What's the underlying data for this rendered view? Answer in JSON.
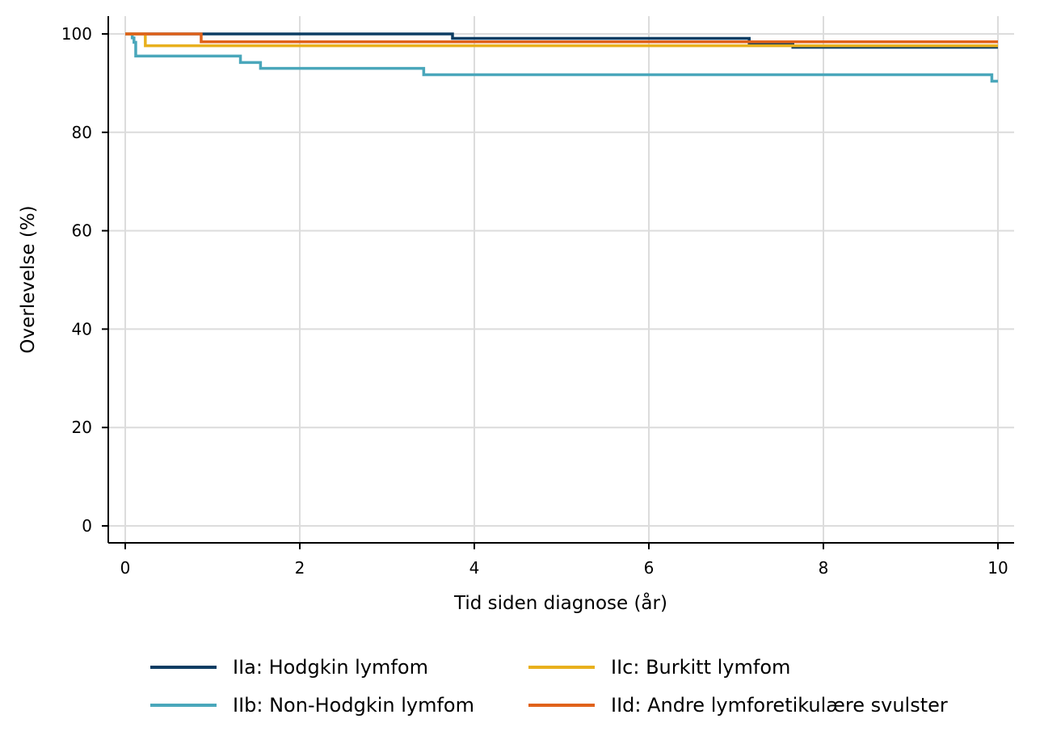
{
  "chart_data": {
    "type": "line",
    "title": "",
    "xlabel": "Tid siden diagnose (år)",
    "ylabel": "Overlevelse (%)",
    "xlim": [
      0,
      10
    ],
    "ylim": [
      0,
      100
    ],
    "x_ticks": [
      0,
      2,
      4,
      6,
      8,
      10
    ],
    "y_ticks": [
      0,
      20,
      40,
      60,
      80,
      100
    ],
    "grid": true,
    "legend_position": "bottom",
    "series": [
      {
        "name": "IIa: Hodgkin lymfom",
        "color": "#0d3d63",
        "steps": [
          [
            0,
            100
          ],
          [
            3.75,
            99.1
          ],
          [
            7.15,
            98.0
          ],
          [
            7.65,
            97.3
          ],
          [
            10,
            97.3
          ]
        ]
      },
      {
        "name": "IIb: Non-Hodgkin lymfom",
        "color": "#4aa7bb",
        "steps": [
          [
            0,
            100
          ],
          [
            0.08,
            99.2
          ],
          [
            0.1,
            98.3
          ],
          [
            0.12,
            95.5
          ],
          [
            1.32,
            94.2
          ],
          [
            1.55,
            93.0
          ],
          [
            3.42,
            91.7
          ],
          [
            9.93,
            90.4
          ],
          [
            10,
            90.4
          ]
        ]
      },
      {
        "name": "IIc: Burkitt lymfom",
        "color": "#e8b01d",
        "steps": [
          [
            0,
            100
          ],
          [
            0.23,
            97.6
          ],
          [
            10,
            97.6
          ]
        ]
      },
      {
        "name": "IId: Andre lymforetikulære svulster",
        "color": "#e0621a",
        "steps": [
          [
            0,
            100
          ],
          [
            0.87,
            98.4
          ],
          [
            10,
            98.4
          ]
        ]
      }
    ]
  }
}
